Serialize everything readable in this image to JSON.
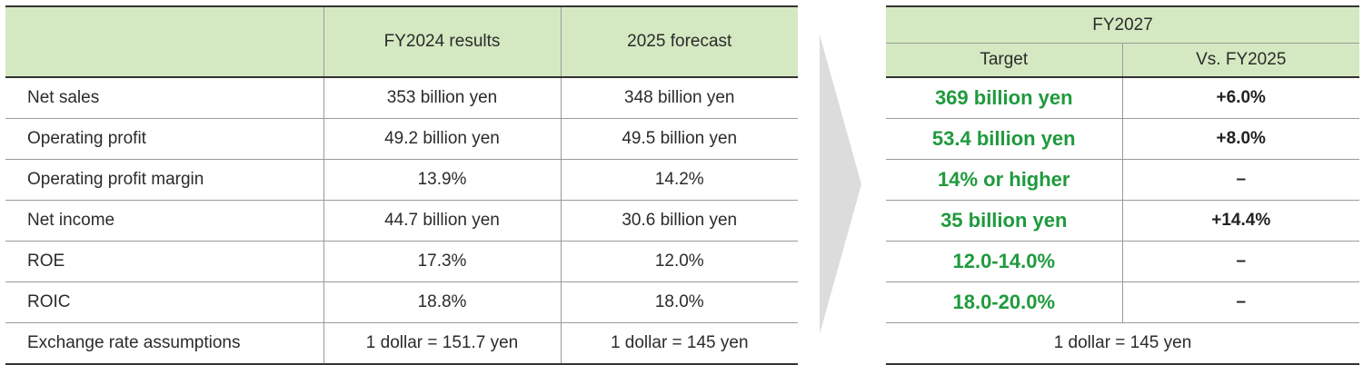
{
  "left_table": {
    "col_headers": [
      "",
      "FY2024 results",
      "2025 forecast"
    ],
    "rows": [
      {
        "label": "Net sales",
        "fy2024": "353 billion yen",
        "forecast2025": "348 billion yen"
      },
      {
        "label": "Operating profit",
        "fy2024": "49.2 billion yen",
        "forecast2025": "49.5 billion yen"
      },
      {
        "label": "Operating profit margin",
        "fy2024": "13.9%",
        "forecast2025": "14.2%"
      },
      {
        "label": "Net income",
        "fy2024": "44.7 billion yen",
        "forecast2025": "30.6 billion yen"
      },
      {
        "label": "ROE",
        "fy2024": "17.3%",
        "forecast2025": "12.0%"
      },
      {
        "label": "ROIC",
        "fy2024": "18.8%",
        "forecast2025": "18.0%"
      },
      {
        "label": "Exchange rate assumptions",
        "fy2024": "1 dollar = 151.7 yen",
        "forecast2025": "1 dollar = 145 yen"
      }
    ]
  },
  "right_table": {
    "group_header": "FY2027",
    "sub_headers": [
      "Target",
      "Vs. FY2025"
    ],
    "rows": [
      {
        "target": "369 billion yen",
        "vs": "+6.0%"
      },
      {
        "target": "53.4 billion yen",
        "vs": "+8.0%"
      },
      {
        "target": "14% or higher",
        "vs": "–"
      },
      {
        "target": "35 billion yen",
        "vs": "+14.4%"
      },
      {
        "target": "12.0-14.0%",
        "vs": "–"
      },
      {
        "target": "18.0-20.0%",
        "vs": "–"
      }
    ],
    "exchange_rate": "1 dollar = 145 yen"
  },
  "colors": {
    "header_bg": "#d4e9c1",
    "target_text": "#1f9a3d",
    "arrow": "#dcdcdc"
  }
}
